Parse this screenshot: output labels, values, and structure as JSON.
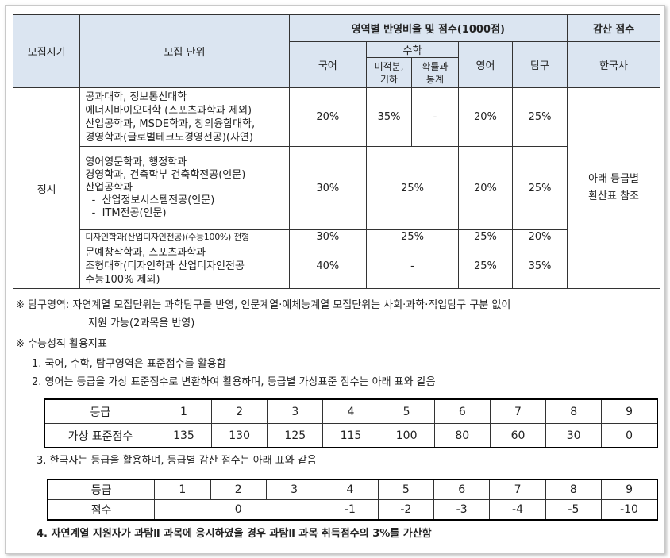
{
  "main_table": {
    "col_period": "모집시기",
    "col_unit": "모집 단위",
    "col_ratio_header": "영역별 반영비율 및 점수(1000점)",
    "col_deduct_header": "감산 점수",
    "col_korean": "국어",
    "col_math": "수학",
    "col_math_calc": "미적분,\n기하",
    "col_math_prob": "확률과\n통계",
    "col_english": "영어",
    "col_inquiry": "탐구",
    "col_history": "한국사",
    "period_value": "정시",
    "history_value": "아래 등급별\n환산표 참조",
    "rows": [
      {
        "unit": "공과대학, 정보통신대학\n에너지바이오대학 (스포츠과학과 제외)\n산업공학과, MSDE학과, 창의융합대학,\n경영학과(글로벌테크노경영전공)(자연)",
        "korean": "20%",
        "math_calc": "35%",
        "math_prob": "-",
        "english": "20%",
        "inquiry": "25%"
      },
      {
        "unit": "영어영문학과, 행정학과\n경영학과, 건축학부 건축학전공(인문)\n산업공학과\n  -  산업정보시스템전공(인문)\n  -  ITM전공(인문)",
        "korean": "30%",
        "math_merged": "25%",
        "english": "20%",
        "inquiry": "25%"
      },
      {
        "unit": "디자인학과(산업디자인전공)(수능100%) 전형",
        "korean": "30%",
        "math_merged": "25%",
        "english": "25%",
        "inquiry": "20%"
      },
      {
        "unit": "문예창작학과, 스포츠과학과\n조형대학(디자인학과  산업디자인전공\n수능100%  제외)",
        "korean": "40%",
        "math_merged": "-",
        "english": "25%",
        "inquiry": "35%"
      }
    ]
  },
  "notes": {
    "inquiry_line1": "※  탐구영역: 자연계열 모집단위는 과학탐구를 반영, 인문계열·예체능계열 모집단위는 사회·과학·직업탐구 구분 없이",
    "inquiry_line2": "지원 가능(2과목을 반영)",
    "indicator_title": "※  수능성적 활용지표",
    "item1": "1. 국어, 수학, 탐구영역은 표준점수를 활용함",
    "item2": "2. 영어는 등급을 가상 표준점수로 변환하여 활용하며, 등급별 가상표준 점수는 아래 표와 같음",
    "item3": "3. 한국사는 등급을 활용하며, 등급별 감산 점수는 아래 표와 같음",
    "item4": "4. 자연계열 지원자가 과탐Ⅱ 과목에 응시하였을 경우 과탐Ⅱ 과목 취득점수의 3%를 가산함"
  },
  "english_table": {
    "grade_label": "등급",
    "score_label": "가상 표준점수",
    "grades": [
      "1",
      "2",
      "3",
      "4",
      "5",
      "6",
      "7",
      "8",
      "9"
    ],
    "scores": [
      "135",
      "130",
      "125",
      "115",
      "100",
      "80",
      "60",
      "30",
      "0"
    ]
  },
  "history_table": {
    "grade_label": "등급",
    "score_label": "점수",
    "grades": [
      "1",
      "2",
      "3",
      "4",
      "5",
      "6",
      "7",
      "8",
      "9"
    ],
    "score_zero": "0",
    "scores_rest": [
      "-1",
      "-2",
      "-3",
      "-4",
      "-5",
      "-10"
    ]
  }
}
